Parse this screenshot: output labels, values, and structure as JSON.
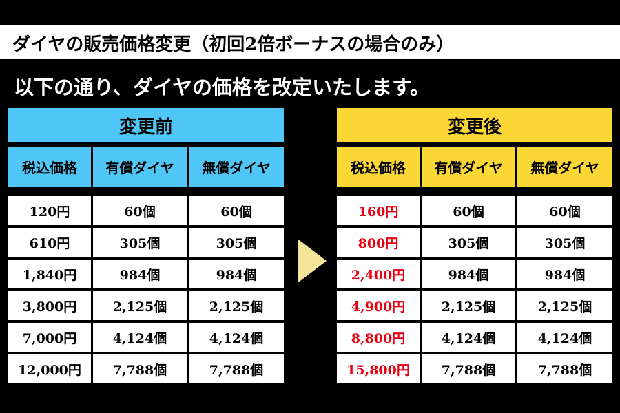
{
  "title": "ダイヤの販売価格変更（初回2倍ボーナスの場合のみ）",
  "subtitle": "以下の通り、ダイヤの価格を改定いたします。",
  "arrow_icon": "chevron-right-icon",
  "colors": {
    "before_header": "#4fc6f6",
    "after_header": "#fbd735",
    "new_price": "#e60012"
  },
  "before": {
    "title": "変更前",
    "headers": [
      "税込価格",
      "有償ダイヤ",
      "無償ダイヤ"
    ],
    "rows": [
      [
        "120円",
        "60個",
        "60個"
      ],
      [
        "610円",
        "305個",
        "305個"
      ],
      [
        "1,840円",
        "984個",
        "984個"
      ],
      [
        "3,800円",
        "2,125個",
        "2,125個"
      ],
      [
        "7,000円",
        "4,124個",
        "4,124個"
      ],
      [
        "12,000円",
        "7,788個",
        "7,788個"
      ]
    ]
  },
  "after": {
    "title": "変更後",
    "headers": [
      "税込価格",
      "有償ダイヤ",
      "無償ダイヤ"
    ],
    "rows": [
      [
        "160円",
        "60個",
        "60個"
      ],
      [
        "800円",
        "305個",
        "305個"
      ],
      [
        "2,400円",
        "984個",
        "984個"
      ],
      [
        "4,900円",
        "2,125個",
        "2,125個"
      ],
      [
        "8,800円",
        "4,124個",
        "4,124個"
      ],
      [
        "15,800円",
        "7,788個",
        "7,788個"
      ]
    ]
  }
}
